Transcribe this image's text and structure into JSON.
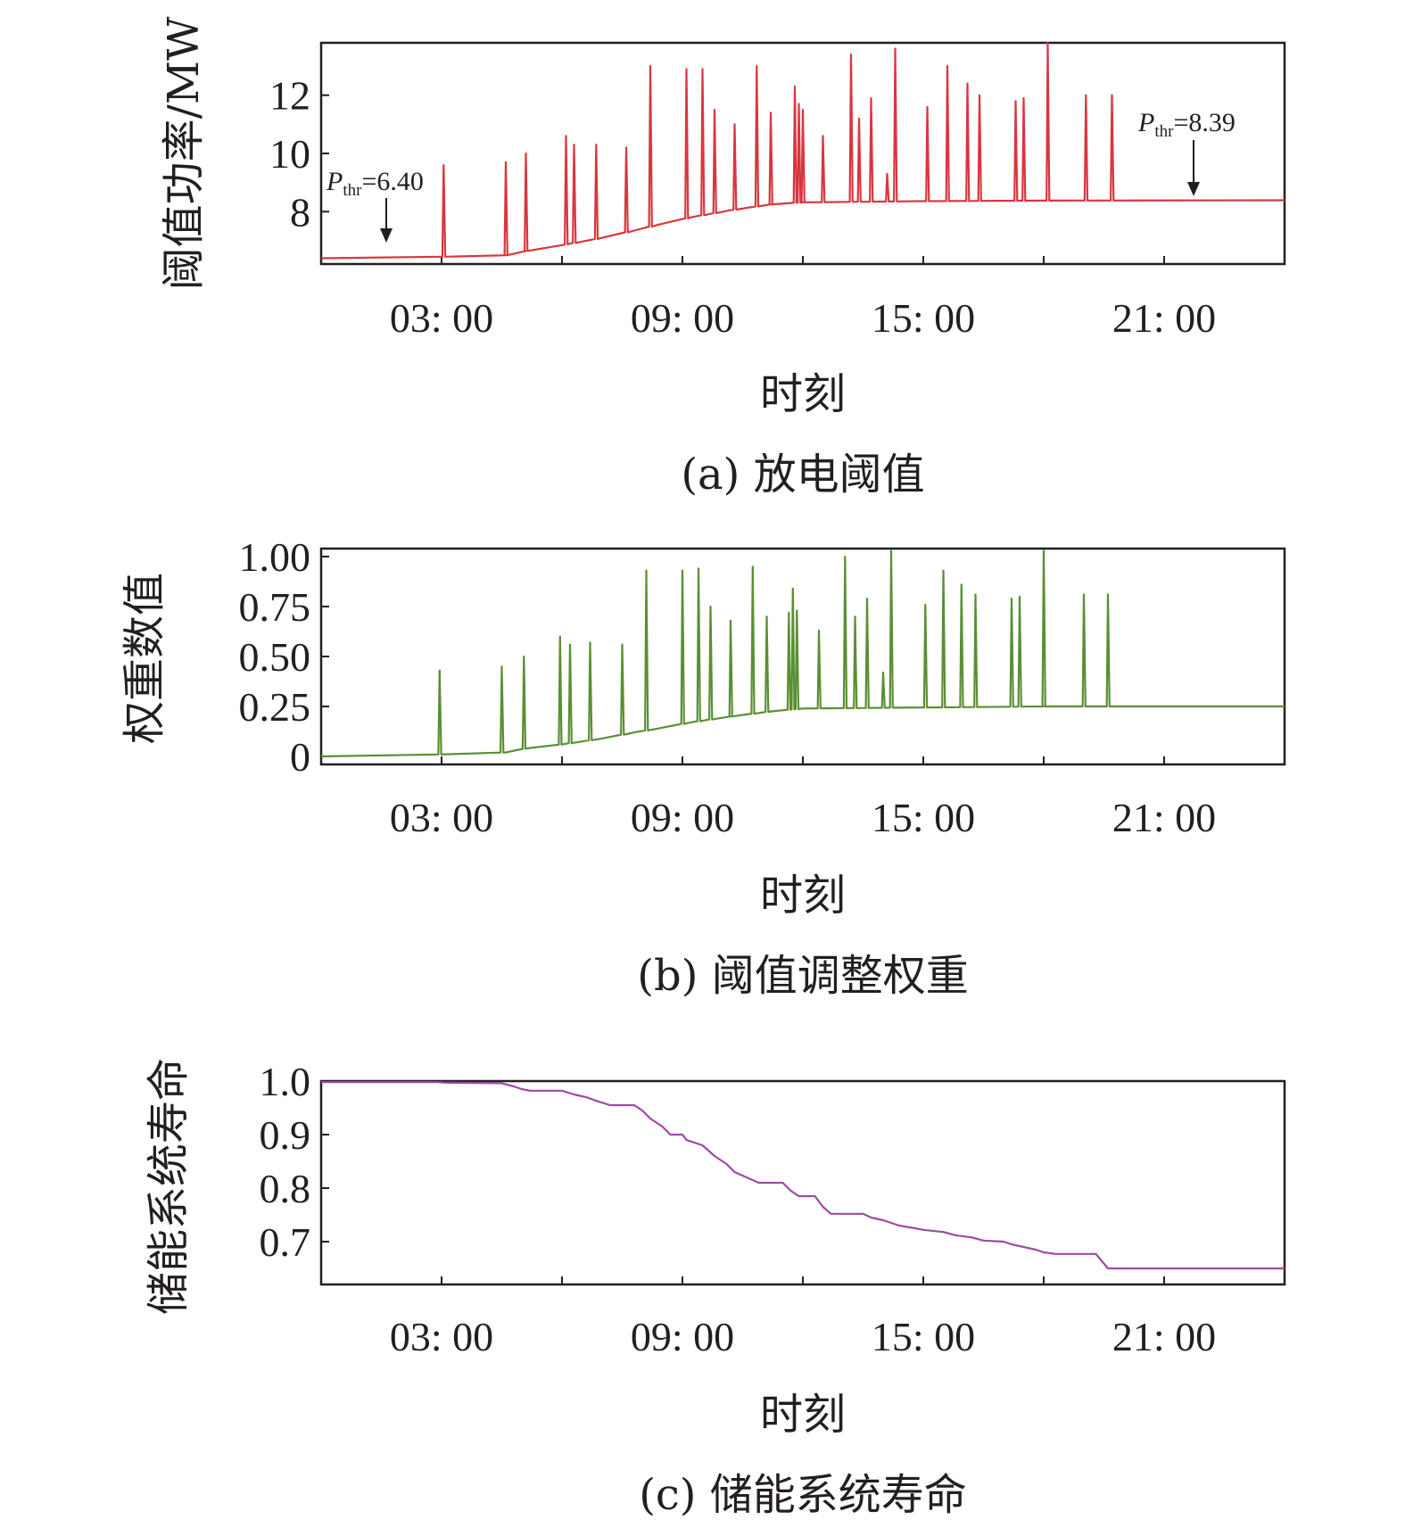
{
  "chart_data": [
    {
      "type": "line",
      "caption": "(a) 放电阈值",
      "xlabel": "时刻",
      "ylabel": "阈值功率/MW",
      "xlim": [
        0,
        24
      ],
      "ylim": [
        6.2,
        13.8
      ],
      "x_ticks": [
        3,
        6,
        9,
        12,
        15,
        18,
        21
      ],
      "x_tick_labels": [
        "03: 00",
        "",
        "09: 00",
        "",
        "15: 00",
        "",
        "21: 00"
      ],
      "y_ticks": [
        8,
        10,
        12
      ],
      "y_tick_labels": [
        "8",
        "10",
        "12"
      ],
      "color": "#d9363e",
      "annotations": [
        {
          "label": "P",
          "subscript": "thr",
          "value_text": "=6.40",
          "x": 1.7,
          "y": 6.4
        },
        {
          "label": "P",
          "subscript": "thr",
          "value_text": "=8.39",
          "x": 21.6,
          "y": 8.39
        }
      ],
      "baseline": [
        [
          0,
          6.4
        ],
        [
          3.0,
          6.45
        ],
        [
          4.6,
          6.5
        ],
        [
          5.1,
          6.65
        ],
        [
          6.0,
          6.85
        ],
        [
          7.0,
          7.1
        ],
        [
          7.8,
          7.35
        ],
        [
          8.4,
          7.55
        ],
        [
          9.2,
          7.8
        ],
        [
          10.2,
          8.05
        ],
        [
          11.2,
          8.25
        ],
        [
          12.0,
          8.32
        ],
        [
          15.0,
          8.36
        ],
        [
          18.0,
          8.38
        ],
        [
          24,
          8.39
        ]
      ],
      "spikes": [
        [
          3.05,
          9.6
        ],
        [
          4.6,
          9.7
        ],
        [
          5.1,
          10.0
        ],
        [
          6.1,
          10.6
        ],
        [
          6.3,
          10.3
        ],
        [
          6.85,
          10.3
        ],
        [
          7.6,
          10.2
        ],
        [
          8.2,
          13.0
        ],
        [
          9.1,
          12.9
        ],
        [
          9.5,
          12.9
        ],
        [
          9.8,
          11.5
        ],
        [
          10.3,
          11.0
        ],
        [
          10.85,
          13.0
        ],
        [
          11.2,
          11.4
        ],
        [
          11.8,
          12.3
        ],
        [
          11.9,
          11.7
        ],
        [
          12.0,
          11.5
        ],
        [
          12.5,
          10.6
        ],
        [
          13.2,
          13.4
        ],
        [
          13.4,
          11.2
        ],
        [
          13.7,
          11.9
        ],
        [
          14.1,
          9.3
        ],
        [
          14.3,
          13.6
        ],
        [
          15.1,
          11.6
        ],
        [
          15.6,
          13.0
        ],
        [
          16.1,
          12.4
        ],
        [
          16.4,
          12.0
        ],
        [
          17.3,
          11.8
        ],
        [
          17.5,
          11.9
        ],
        [
          18.1,
          13.8
        ],
        [
          19.05,
          12.0
        ],
        [
          19.7,
          12.0
        ]
      ]
    },
    {
      "type": "line",
      "caption": "(b) 阈值调整权重",
      "xlabel": "时刻",
      "ylabel": "权重数值",
      "xlim": [
        0,
        24
      ],
      "ylim": [
        -0.04,
        1.04
      ],
      "x_ticks": [
        3,
        6,
        9,
        12,
        15,
        18,
        21
      ],
      "x_tick_labels": [
        "03: 00",
        "",
        "09: 00",
        "",
        "15: 00",
        "",
        "21: 00"
      ],
      "y_ticks": [
        0,
        0.25,
        0.5,
        0.75,
        1.0
      ],
      "y_tick_labels": [
        "0",
        "0.25",
        "0.50",
        "0.75",
        "1.00"
      ],
      "color": "#5a8f33",
      "baseline": [
        [
          0,
          0.0
        ],
        [
          3.0,
          0.01
        ],
        [
          4.6,
          0.02
        ],
        [
          5.1,
          0.04
        ],
        [
          6.0,
          0.06
        ],
        [
          7.0,
          0.09
        ],
        [
          7.8,
          0.12
        ],
        [
          8.4,
          0.14
        ],
        [
          9.2,
          0.17
        ],
        [
          10.2,
          0.2
        ],
        [
          11.2,
          0.225
        ],
        [
          12.0,
          0.24
        ],
        [
          15.0,
          0.245
        ],
        [
          18.0,
          0.25
        ],
        [
          24,
          0.25
        ]
      ],
      "spikes": [
        [
          2.95,
          0.43
        ],
        [
          4.5,
          0.45
        ],
        [
          5.05,
          0.5
        ],
        [
          5.95,
          0.6
        ],
        [
          6.2,
          0.56
        ],
        [
          6.7,
          0.57
        ],
        [
          7.5,
          0.56
        ],
        [
          8.1,
          0.93
        ],
        [
          9.0,
          0.93
        ],
        [
          9.4,
          0.94
        ],
        [
          9.7,
          0.75
        ],
        [
          10.2,
          0.68
        ],
        [
          10.75,
          0.95
        ],
        [
          11.1,
          0.7
        ],
        [
          11.65,
          0.72
        ],
        [
          11.75,
          0.84
        ],
        [
          11.85,
          0.73
        ],
        [
          12.4,
          0.63
        ],
        [
          13.05,
          1.0
        ],
        [
          13.3,
          0.7
        ],
        [
          13.6,
          0.79
        ],
        [
          14.0,
          0.42
        ],
        [
          14.2,
          1.03
        ],
        [
          15.05,
          0.76
        ],
        [
          15.5,
          0.93
        ],
        [
          15.95,
          0.86
        ],
        [
          16.3,
          0.81
        ],
        [
          17.2,
          0.79
        ],
        [
          17.4,
          0.8
        ],
        [
          18.0,
          1.03
        ],
        [
          19.0,
          0.81
        ],
        [
          19.6,
          0.81
        ]
      ]
    },
    {
      "type": "line",
      "caption": "(c) 储能系统寿命",
      "xlabel": "时刻",
      "ylabel": "储能系统寿命",
      "xlim": [
        0,
        24
      ],
      "ylim": [
        0.62,
        1.0
      ],
      "x_ticks": [
        3,
        6,
        9,
        12,
        15,
        18,
        21
      ],
      "x_tick_labels": [
        "03: 00",
        "",
        "09: 00",
        "",
        "15: 00",
        "",
        "21: 00"
      ],
      "y_ticks": [
        0.7,
        0.8,
        0.9,
        1.0
      ],
      "y_tick_labels": [
        "0.7",
        "0.8",
        "0.9",
        "1.0"
      ],
      "color": "#9d4aa5",
      "points": [
        [
          0,
          0.998
        ],
        [
          2.9,
          0.998
        ],
        [
          3.1,
          0.997
        ],
        [
          4.5,
          0.996
        ],
        [
          4.8,
          0.99
        ],
        [
          5.0,
          0.985
        ],
        [
          5.2,
          0.982
        ],
        [
          6.0,
          0.982
        ],
        [
          6.3,
          0.975
        ],
        [
          6.6,
          0.97
        ],
        [
          6.9,
          0.962
        ],
        [
          7.2,
          0.955
        ],
        [
          7.8,
          0.955
        ],
        [
          8.0,
          0.945
        ],
        [
          8.2,
          0.93
        ],
        [
          8.5,
          0.915
        ],
        [
          8.7,
          0.9
        ],
        [
          9.0,
          0.9
        ],
        [
          9.1,
          0.89
        ],
        [
          9.5,
          0.88
        ],
        [
          9.8,
          0.86
        ],
        [
          10.1,
          0.845
        ],
        [
          10.3,
          0.83
        ],
        [
          10.6,
          0.82
        ],
        [
          10.9,
          0.81
        ],
        [
          11.5,
          0.81
        ],
        [
          11.7,
          0.795
        ],
        [
          11.9,
          0.785
        ],
        [
          12.3,
          0.785
        ],
        [
          12.5,
          0.765
        ],
        [
          12.7,
          0.752
        ],
        [
          13.5,
          0.752
        ],
        [
          13.7,
          0.745
        ],
        [
          14.0,
          0.74
        ],
        [
          14.2,
          0.735
        ],
        [
          14.4,
          0.73
        ],
        [
          14.8,
          0.725
        ],
        [
          15.0,
          0.722
        ],
        [
          15.5,
          0.718
        ],
        [
          15.8,
          0.712
        ],
        [
          16.2,
          0.708
        ],
        [
          16.5,
          0.702
        ],
        [
          17.0,
          0.7
        ],
        [
          17.2,
          0.695
        ],
        [
          17.5,
          0.69
        ],
        [
          17.8,
          0.685
        ],
        [
          18.0,
          0.68
        ],
        [
          18.3,
          0.677
        ],
        [
          19.3,
          0.677
        ],
        [
          19.6,
          0.65
        ],
        [
          20.0,
          0.65
        ],
        [
          21.0,
          0.65
        ],
        [
          24,
          0.65
        ]
      ]
    }
  ]
}
